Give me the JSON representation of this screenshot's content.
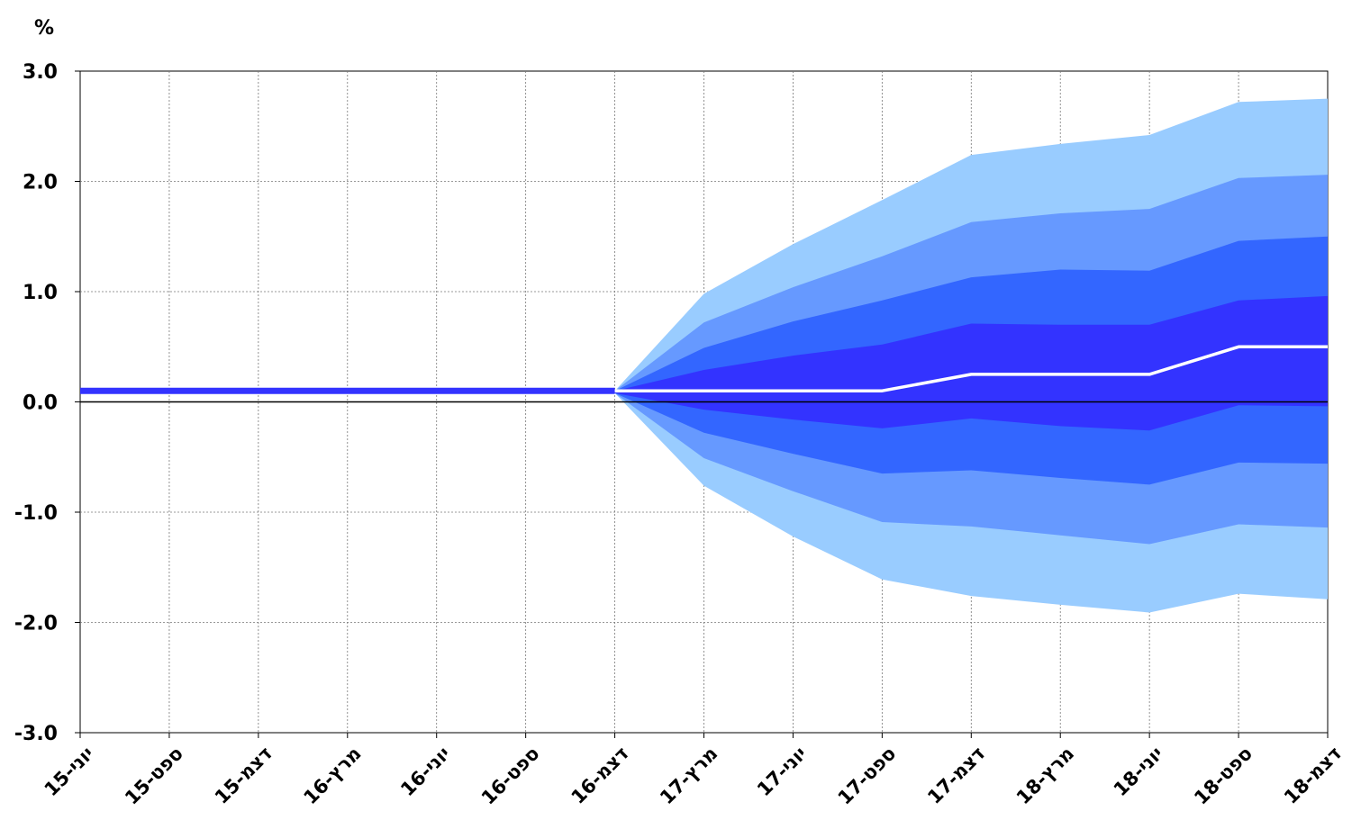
{
  "chart_data": {
    "type": "area",
    "title": "",
    "unit_label": "%",
    "xlabel": "",
    "ylabel": "",
    "ylim": [
      -3.0,
      3.0
    ],
    "y_ticks": [
      "3.0",
      "2.0",
      "1.0",
      "0.0",
      "-1.0",
      "-2.0",
      "-3.0"
    ],
    "categories": [
      "יוני-15",
      "ספט-15",
      "דצמ-15",
      "מרץ-16",
      "יוני-16",
      "ספט-16",
      "דצמ-16",
      "מרץ-17",
      "יוני-17",
      "ספט-17",
      "דצמ-17",
      "מרץ-18",
      "יוני-18",
      "ספט-18",
      "דצמ-18"
    ],
    "grid": true,
    "fan_bands": {
      "colors": [
        "#99ccff",
        "#6699ff",
        "#3366ff",
        "#3333ff"
      ],
      "upper": [
        [
          0.1,
          0.1,
          0.1,
          0.1,
          0.1,
          0.1,
          0.1,
          0.98,
          1.43,
          1.83,
          2.24,
          2.34,
          2.42,
          2.72,
          2.75
        ],
        [
          0.1,
          0.1,
          0.1,
          0.1,
          0.1,
          0.1,
          0.1,
          0.72,
          1.04,
          1.32,
          1.63,
          1.71,
          1.75,
          2.03,
          2.06
        ],
        [
          0.1,
          0.1,
          0.1,
          0.1,
          0.1,
          0.1,
          0.1,
          0.49,
          0.73,
          0.92,
          1.13,
          1.2,
          1.19,
          1.46,
          1.5
        ],
        [
          0.1,
          0.1,
          0.1,
          0.1,
          0.1,
          0.1,
          0.1,
          0.29,
          0.42,
          0.52,
          0.71,
          0.7,
          0.7,
          0.92,
          0.96
        ]
      ],
      "lower": [
        [
          0.08,
          0.08,
          0.08,
          0.08,
          0.08,
          0.08,
          0.08,
          -0.76,
          -1.22,
          -1.61,
          -1.76,
          -1.84,
          -1.91,
          -1.74,
          -1.79
        ],
        [
          0.08,
          0.08,
          0.08,
          0.08,
          0.08,
          0.08,
          0.08,
          -0.51,
          -0.81,
          -1.09,
          -1.13,
          -1.21,
          -1.29,
          -1.11,
          -1.14
        ],
        [
          0.08,
          0.08,
          0.08,
          0.08,
          0.08,
          0.08,
          0.08,
          -0.28,
          -0.47,
          -0.65,
          -0.62,
          -0.69,
          -0.75,
          -0.55,
          -0.56
        ],
        [
          0.08,
          0.08,
          0.08,
          0.08,
          0.08,
          0.08,
          0.08,
          -0.07,
          -0.16,
          -0.24,
          -0.15,
          -0.22,
          -0.26,
          -0.03,
          -0.04
        ]
      ]
    },
    "history": {
      "color": "#3333ff",
      "values": [
        0.1,
        0.1,
        0.1,
        0.1,
        0.1,
        0.1,
        0.1
      ]
    },
    "median_forecast": {
      "color": "#ffffff",
      "values": [
        null,
        null,
        null,
        null,
        null,
        null,
        0.1,
        0.1,
        0.1,
        0.1,
        0.25,
        0.25,
        0.25,
        0.5,
        0.5
      ]
    }
  }
}
